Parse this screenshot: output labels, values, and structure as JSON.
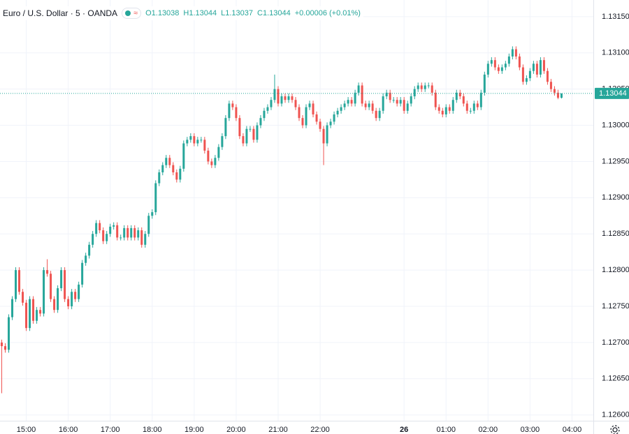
{
  "chart_data": {
    "type": "candlestick",
    "title": "Euro / U.S. Dollar · 5 · OANDA",
    "legend_values": [
      "O1.13038",
      "H1.13044",
      "L1.13037",
      "C1.13044"
    ],
    "change": "+0.00006 (+0.01%)",
    "up_color": "#26a69a",
    "down_color": "#ef5350",
    "grid": true,
    "xlim": [
      -0.5,
      169.1
    ],
    "xticks": [
      {
        "value": 7,
        "label": "15:00"
      },
      {
        "value": 19,
        "label": "16:00"
      },
      {
        "value": 31,
        "label": "17:00"
      },
      {
        "value": 43,
        "label": "18:00"
      },
      {
        "value": 55,
        "label": "19:00"
      },
      {
        "value": 67,
        "label": "20:00"
      },
      {
        "value": 79,
        "label": "21:00"
      },
      {
        "value": 91,
        "label": "22:00"
      },
      {
        "value": 115,
        "label": "26"
      },
      {
        "value": 127,
        "label": "01:00"
      },
      {
        "value": 139,
        "label": "02:00"
      },
      {
        "value": 151,
        "label": "03:00"
      },
      {
        "value": 163,
        "label": "04:00"
      }
    ],
    "ylim": [
      1.12592,
      1.13173
    ],
    "yticks": [
      {
        "value": 1.126,
        "label": "1.12600"
      },
      {
        "value": 1.1265,
        "label": "1.12650"
      },
      {
        "value": 1.127,
        "label": "1.12700"
      },
      {
        "value": 1.1275,
        "label": "1.12750"
      },
      {
        "value": 1.128,
        "label": "1.12800"
      },
      {
        "value": 1.1285,
        "label": "1.12850"
      },
      {
        "value": 1.129,
        "label": "1.12900"
      },
      {
        "value": 1.1295,
        "label": "1.12950"
      },
      {
        "value": 1.13,
        "label": "1.13000"
      },
      {
        "value": 1.1305,
        "label": "1.13050"
      },
      {
        "value": 1.131,
        "label": "1.13100"
      },
      {
        "value": 1.1315,
        "label": "1.13150"
      }
    ],
    "last_price": {
      "value": 1.13044,
      "label": "1.13044"
    },
    "open": [
      1.127,
      1.12695,
      1.1269,
      1.12735,
      1.1276,
      1.128,
      1.1277,
      1.12755,
      1.1272,
      1.1276,
      1.1273,
      1.12745,
      1.1274,
      1.128,
      1.12795,
      1.1276,
      1.12745,
      1.12775,
      1.128,
      1.1276,
      1.1275,
      1.1277,
      1.1276,
      1.1278,
      1.1281,
      1.1282,
      1.12835,
      1.1285,
      1.12865,
      1.12855,
      1.1284,
      1.1285,
      1.1286,
      1.12862,
      1.12845,
      1.12845,
      1.12858,
      1.12845,
      1.12858,
      1.12845,
      1.12855,
      1.12835,
      1.1285,
      1.12875,
      1.1288,
      1.1292,
      1.12935,
      1.12945,
      1.12955,
      1.12945,
      1.12935,
      1.12925,
      1.1294,
      1.12975,
      1.1298,
      1.12985,
      1.12975,
      1.1298,
      1.1298,
      1.12965,
      1.1295,
      1.12945,
      1.12955,
      1.1297,
      1.12985,
      1.1301,
      1.1303,
      1.13025,
      1.1301,
      1.12985,
      1.12975,
      1.12995,
      1.12995,
      1.1298,
      1.13,
      1.1301,
      1.1302,
      1.13025,
      1.13035,
      1.1305,
      1.1303,
      1.1304,
      1.13035,
      1.1304,
      1.13035,
      1.13025,
      1.1301,
      1.13,
      1.13025,
      1.1303,
      1.13015,
      1.13005,
      1.12995,
      1.12975,
      1.13,
      1.13005,
      1.13015,
      1.1302,
      1.13025,
      1.1303,
      1.13035,
      1.1303,
      1.13045,
      1.13055,
      1.1303,
      1.13025,
      1.1303,
      1.1302,
      1.1301,
      1.1302,
      1.1304,
      1.13045,
      1.13035,
      1.13035,
      1.1303,
      1.13035,
      1.1302,
      1.1303,
      1.1304,
      1.1305,
      1.13055,
      1.1305,
      1.13055,
      1.13055,
      1.13045,
      1.13025,
      1.1302,
      1.13015,
      1.13025,
      1.1302,
      1.13035,
      1.13045,
      1.1304,
      1.1303,
      1.1302,
      1.1302,
      1.1303,
      1.13025,
      1.13045,
      1.1307,
      1.13085,
      1.1309,
      1.1308,
      1.13075,
      1.1308,
      1.13085,
      1.13095,
      1.13105,
      1.13095,
      1.1308,
      1.1306,
      1.13065,
      1.13075,
      1.13085,
      1.1307,
      1.1309,
      1.13075,
      1.1306,
      1.1305,
      1.13045,
      1.13038
    ],
    "high": [
      1.12704,
      1.12699,
      1.12739,
      1.12764,
      1.12804,
      1.12804,
      1.12774,
      1.12759,
      1.12764,
      1.12764,
      1.12749,
      1.12749,
      1.12804,
      1.12815,
      1.12799,
      1.12764,
      1.12779,
      1.12804,
      1.12804,
      1.12764,
      1.12774,
      1.12774,
      1.12784,
      1.12814,
      1.12824,
      1.12839,
      1.12854,
      1.12869,
      1.12869,
      1.12859,
      1.12854,
      1.12864,
      1.12866,
      1.12866,
      1.12849,
      1.12862,
      1.12862,
      1.12862,
      1.12862,
      1.12859,
      1.12859,
      1.12854,
      1.12879,
      1.12884,
      1.12924,
      1.12939,
      1.12949,
      1.12959,
      1.12959,
      1.12949,
      1.12939,
      1.12944,
      1.12979,
      1.12984,
      1.12989,
      1.12989,
      1.12984,
      1.12984,
      1.12984,
      1.12969,
      1.12954,
      1.12959,
      1.12974,
      1.12989,
      1.13014,
      1.13034,
      1.13034,
      1.13029,
      1.13014,
      1.12989,
      1.12999,
      1.12999,
      1.12999,
      1.13004,
      1.13014,
      1.13024,
      1.13029,
      1.13039,
      1.1307,
      1.13054,
      1.13044,
      1.13044,
      1.13044,
      1.13044,
      1.13039,
      1.13029,
      1.13014,
      1.13029,
      1.13034,
      1.13034,
      1.13019,
      1.13009,
      1.12999,
      1.13004,
      1.13009,
      1.13019,
      1.13024,
      1.13029,
      1.13034,
      1.13039,
      1.13039,
      1.13049,
      1.13059,
      1.13059,
      1.13034,
      1.13034,
      1.13034,
      1.13024,
      1.13024,
      1.13044,
      1.13049,
      1.13049,
      1.13039,
      1.13039,
      1.13039,
      1.13039,
      1.13034,
      1.13044,
      1.13054,
      1.13059,
      1.13059,
      1.13059,
      1.13059,
      1.13059,
      1.13049,
      1.13029,
      1.13024,
      1.13029,
      1.13029,
      1.13039,
      1.13049,
      1.13049,
      1.13044,
      1.13034,
      1.13024,
      1.13034,
      1.13034,
      1.13049,
      1.13074,
      1.13089,
      1.13094,
      1.13094,
      1.13084,
      1.13084,
      1.13089,
      1.13099,
      1.13109,
      1.13109,
      1.13099,
      1.13084,
      1.13069,
      1.13079,
      1.13089,
      1.13089,
      1.13094,
      1.13094,
      1.13079,
      1.13064,
      1.13054,
      1.13049,
      1.13044
    ],
    "low": [
      1.1263,
      1.12686,
      1.12686,
      1.12731,
      1.12756,
      1.12766,
      1.12751,
      1.12716,
      1.12716,
      1.12726,
      1.12726,
      1.12736,
      1.12736,
      1.12791,
      1.12756,
      1.12741,
      1.12741,
      1.12771,
      1.12756,
      1.12746,
      1.12746,
      1.12756,
      1.12756,
      1.12776,
      1.12806,
      1.12816,
      1.12831,
      1.12846,
      1.12851,
      1.12836,
      1.12836,
      1.12846,
      1.12856,
      1.12841,
      1.12841,
      1.12841,
      1.12841,
      1.12841,
      1.12841,
      1.12841,
      1.12831,
      1.12831,
      1.12846,
      1.12871,
      1.12876,
      1.12916,
      1.12931,
      1.12941,
      1.12941,
      1.12931,
      1.12921,
      1.12921,
      1.12936,
      1.12971,
      1.12976,
      1.12971,
      1.12971,
      1.12976,
      1.12961,
      1.12946,
      1.12941,
      1.12941,
      1.12951,
      1.12966,
      1.12981,
      1.13006,
      1.13021,
      1.13006,
      1.12981,
      1.12971,
      1.12971,
      1.12991,
      1.12976,
      1.12976,
      1.12996,
      1.13006,
      1.13016,
      1.13021,
      1.13031,
      1.13026,
      1.13026,
      1.13031,
      1.13031,
      1.13031,
      1.13021,
      1.13006,
      1.12996,
      1.12996,
      1.13021,
      1.13011,
      1.13001,
      1.12991,
      1.12945,
      1.12971,
      1.12996,
      1.13001,
      1.13011,
      1.13016,
      1.13021,
      1.13026,
      1.13026,
      1.13026,
      1.13041,
      1.13026,
      1.13021,
      1.13021,
      1.13016,
      1.13006,
      1.13006,
      1.13016,
      1.13036,
      1.13031,
      1.13031,
      1.13026,
      1.13026,
      1.13016,
      1.13016,
      1.13026,
      1.13036,
      1.13046,
      1.13046,
      1.13046,
      1.13051,
      1.13041,
      1.13021,
      1.13016,
      1.13011,
      1.13011,
      1.13016,
      1.13016,
      1.13031,
      1.13036,
      1.13026,
      1.13016,
      1.13016,
      1.13016,
      1.13021,
      1.13021,
      1.13041,
      1.13066,
      1.13081,
      1.13076,
      1.13071,
      1.13071,
      1.13076,
      1.13081,
      1.13091,
      1.13091,
      1.13076,
      1.13056,
      1.13056,
      1.13061,
      1.13071,
      1.13066,
      1.13066,
      1.13071,
      1.13056,
      1.13046,
      1.13041,
      1.13036,
      1.13037
    ],
    "close": [
      1.12695,
      1.1269,
      1.12735,
      1.1276,
      1.128,
      1.1277,
      1.12755,
      1.1272,
      1.1276,
      1.1273,
      1.12745,
      1.1274,
      1.128,
      1.12795,
      1.1276,
      1.12745,
      1.12775,
      1.128,
      1.1276,
      1.1275,
      1.1277,
      1.1276,
      1.1278,
      1.1281,
      1.1282,
      1.12835,
      1.1285,
      1.12865,
      1.12855,
      1.1284,
      1.1285,
      1.1286,
      1.12862,
      1.12845,
      1.12845,
      1.12858,
      1.12845,
      1.12858,
      1.12845,
      1.12855,
      1.12835,
      1.1285,
      1.12875,
      1.1288,
      1.1292,
      1.12935,
      1.12945,
      1.12955,
      1.12945,
      1.12935,
      1.12925,
      1.1294,
      1.12975,
      1.1298,
      1.12985,
      1.12975,
      1.1298,
      1.1298,
      1.12965,
      1.1295,
      1.12945,
      1.12955,
      1.1297,
      1.12985,
      1.1301,
      1.1303,
      1.13025,
      1.1301,
      1.12985,
      1.12975,
      1.12995,
      1.12995,
      1.1298,
      1.13,
      1.1301,
      1.1302,
      1.13025,
      1.13035,
      1.1305,
      1.1303,
      1.1304,
      1.13035,
      1.1304,
      1.13035,
      1.13025,
      1.1301,
      1.13,
      1.13025,
      1.1303,
      1.13015,
      1.13005,
      1.12995,
      1.12975,
      1.13,
      1.13005,
      1.13015,
      1.1302,
      1.13025,
      1.1303,
      1.13035,
      1.1303,
      1.13045,
      1.13055,
      1.1303,
      1.13025,
      1.1303,
      1.1302,
      1.1301,
      1.1302,
      1.1304,
      1.13045,
      1.13035,
      1.13035,
      1.1303,
      1.13035,
      1.1302,
      1.1303,
      1.1304,
      1.1305,
      1.13055,
      1.1305,
      1.13055,
      1.13055,
      1.13045,
      1.13025,
      1.1302,
      1.13015,
      1.13025,
      1.1302,
      1.13035,
      1.13045,
      1.1304,
      1.1303,
      1.1302,
      1.1302,
      1.1303,
      1.13025,
      1.13045,
      1.1307,
      1.13085,
      1.1309,
      1.1308,
      1.13075,
      1.1308,
      1.13085,
      1.13095,
      1.13105,
      1.13095,
      1.1308,
      1.1306,
      1.13065,
      1.13075,
      1.13085,
      1.1307,
      1.1309,
      1.13075,
      1.1306,
      1.1305,
      1.13045,
      1.13038,
      1.13044
    ]
  }
}
